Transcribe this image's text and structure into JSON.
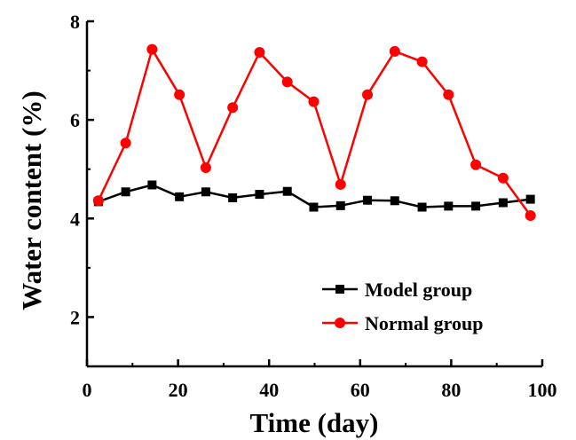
{
  "chart_data": {
    "type": "line",
    "xlabel": "Time (day)",
    "ylabel": "Water content (%)",
    "xlim": [
      0,
      100
    ],
    "ylim": [
      1,
      8
    ],
    "xticks": [
      0,
      20,
      40,
      60,
      80,
      100
    ],
    "yticks": [
      2,
      4,
      6,
      8
    ],
    "x_tick_labels": [
      "0",
      "20",
      "40",
      "60",
      "80",
      "100"
    ],
    "y_tick_labels": [
      "2",
      "4",
      "6",
      "8"
    ],
    "grid": false,
    "legend_position": "lower-right",
    "series": [
      {
        "name": "Model group",
        "color": "#000000",
        "marker": "square",
        "x": [
          2.5,
          8.5,
          14.3,
          20.3,
          26.1,
          32.0,
          37.9,
          44.0,
          49.8,
          55.7,
          61.6,
          67.6,
          73.6,
          79.4,
          85.4,
          91.4,
          97.4
        ],
        "y": [
          4.34,
          4.54,
          4.68,
          4.44,
          4.54,
          4.42,
          4.49,
          4.55,
          4.23,
          4.26,
          4.37,
          4.36,
          4.23,
          4.25,
          4.25,
          4.32,
          4.39
        ]
      },
      {
        "name": "Normal group",
        "color": "#ff0000",
        "marker": "circle",
        "x": [
          2.5,
          8.5,
          14.3,
          20.3,
          26.1,
          32.0,
          37.9,
          44.0,
          49.8,
          55.7,
          61.6,
          67.6,
          73.6,
          79.4,
          85.4,
          91.4,
          97.4
        ],
        "y": [
          4.36,
          5.53,
          7.43,
          6.51,
          5.03,
          6.25,
          7.37,
          6.77,
          6.37,
          4.69,
          6.51,
          7.39,
          7.18,
          6.51,
          5.09,
          4.82,
          4.06
        ]
      }
    ]
  }
}
